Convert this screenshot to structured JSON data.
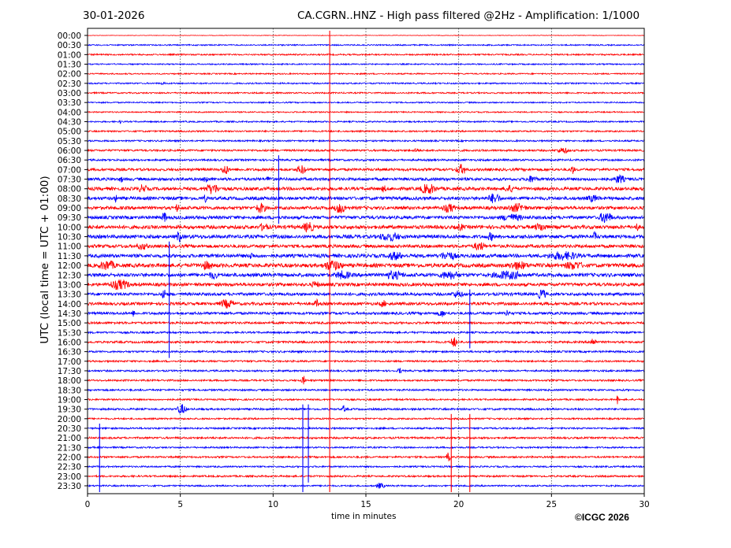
{
  "chart_data": {
    "type": "line",
    "date": "30-01-2026",
    "title": "CA.CGRN..HNZ - High pass filtered @2Hz - Amplification: 1/1000",
    "xlabel": "time in minutes",
    "ylabel": "UTC (local time = UTC + 01:00)",
    "copyright": "©ICGC 2026",
    "xlim": [
      0,
      30
    ],
    "x_ticks": [
      0,
      5,
      10,
      15,
      20,
      25,
      30
    ],
    "x_tick_labels": [
      "0",
      "5",
      "10",
      "15",
      "20",
      "25",
      "30"
    ],
    "grid": "vertical dotted at 5-minute intervals",
    "row_labels": [
      "00:00",
      "00:30",
      "01:00",
      "01:30",
      "02:00",
      "02:30",
      "03:00",
      "03:30",
      "04:00",
      "04:30",
      "05:00",
      "05:30",
      "06:00",
      "06:30",
      "07:00",
      "07:30",
      "08:00",
      "08:30",
      "09:00",
      "09:30",
      "10:00",
      "10:30",
      "11:00",
      "11:30",
      "12:00",
      "12:30",
      "13:00",
      "13:30",
      "14:00",
      "14:30",
      "15:00",
      "15:30",
      "16:00",
      "16:30",
      "17:00",
      "17:30",
      "18:00",
      "18:30",
      "19:00",
      "19:30",
      "20:00",
      "20:30",
      "21:00",
      "21:30",
      "22:00",
      "22:30",
      "23:00",
      "23:30"
    ],
    "series_colors": [
      "#ff0000",
      "#0000ff"
    ],
    "noise_level_by_row": [
      0.3,
      0.8,
      0.9,
      0.8,
      0.8,
      0.9,
      0.9,
      0.8,
      0.8,
      0.9,
      1,
      1,
      1.2,
      1.2,
      1.6,
      1.8,
      2,
      2,
      2,
      2,
      2.2,
      2.2,
      2,
      2.2,
      2.4,
      2.2,
      2,
      1.8,
      1.8,
      1.6,
      1.4,
      1.2,
      1.3,
      1.2,
      1.1,
      1.1,
      1.1,
      1.1,
      1,
      1.2,
      1,
      1.1,
      1.2,
      1,
      1.1,
      1,
      1.1,
      1
    ],
    "events": [
      [
        5,
        3.9,
        0.6,
        2
      ],
      [
        9,
        1.7,
        0.3,
        3
      ],
      [
        9,
        15,
        0.2,
        2
      ],
      [
        12,
        17.5,
        0.8,
        3
      ],
      [
        12,
        25.2,
        1.5,
        4
      ],
      [
        14,
        7.2,
        0.8,
        7
      ],
      [
        14,
        11.2,
        1.2,
        6
      ],
      [
        14,
        19.8,
        1.2,
        7
      ],
      [
        14,
        26,
        0.5,
        6
      ],
      [
        15,
        1.7,
        0.4,
        5
      ],
      [
        15,
        6.2,
        0.6,
        6
      ],
      [
        15,
        9.6,
        0.6,
        5
      ],
      [
        15,
        23.5,
        1.5,
        5
      ],
      [
        15,
        28.3,
        1.3,
        6
      ],
      [
        16,
        2.7,
        1,
        6
      ],
      [
        16,
        6.2,
        1.8,
        7
      ],
      [
        16,
        15.8,
        0.6,
        5
      ],
      [
        16,
        17.8,
        2,
        7
      ],
      [
        16,
        22.3,
        1.6,
        5
      ],
      [
        17,
        1.4,
        0.4,
        5
      ],
      [
        17,
        6.2,
        0.5,
        5
      ],
      [
        17,
        21.5,
        1.5,
        7
      ],
      [
        17,
        26.8,
        1.6,
        5
      ],
      [
        18,
        4.7,
        0.5,
        6
      ],
      [
        18,
        9,
        1.2,
        7
      ],
      [
        18,
        13.2,
        1.5,
        7
      ],
      [
        18,
        19,
        1.6,
        6
      ],
      [
        18,
        22.5,
        2.3,
        6
      ],
      [
        19,
        4,
        0.5,
        8
      ],
      [
        19,
        22,
        3,
        5
      ],
      [
        19,
        27.5,
        1.5,
        8
      ],
      [
        20,
        9.2,
        1.1,
        6
      ],
      [
        20,
        11.5,
        1.4,
        7
      ],
      [
        20,
        19.8,
        1,
        5
      ],
      [
        20,
        24,
        1.5,
        6
      ],
      [
        20,
        29.5,
        0.4,
        6
      ],
      [
        21,
        4.8,
        0.5,
        9
      ],
      [
        21,
        15.5,
        2.8,
        6
      ],
      [
        21,
        21.5,
        0.8,
        6
      ],
      [
        21,
        27.2,
        0.5,
        7
      ],
      [
        22,
        2.5,
        1.5,
        5
      ],
      [
        22,
        20.7,
        1.5,
        6
      ],
      [
        23,
        8.7,
        0.5,
        6
      ],
      [
        23,
        16,
        2,
        6
      ],
      [
        23,
        18.8,
        2.2,
        6
      ],
      [
        23,
        24.5,
        4,
        6
      ],
      [
        24,
        0.5,
        2,
        7
      ],
      [
        24,
        6,
        1.5,
        6
      ],
      [
        24,
        12.5,
        2.5,
        7
      ],
      [
        24,
        22.5,
        2.5,
        6
      ],
      [
        24,
        25.5,
        2.5,
        6
      ],
      [
        25,
        6.5,
        1,
        6
      ],
      [
        25,
        13.2,
        2,
        6
      ],
      [
        25,
        15.8,
        2.5,
        6
      ],
      [
        25,
        18.8,
        2.5,
        6
      ],
      [
        25,
        21.5,
        4,
        6
      ],
      [
        26,
        1,
        2.5,
        7
      ],
      [
        26,
        12,
        1,
        5
      ],
      [
        27,
        4,
        0.5,
        8
      ],
      [
        27,
        19.5,
        1.5,
        5
      ],
      [
        27,
        24.2,
        1,
        7
      ],
      [
        28,
        7,
        1.8,
        6
      ],
      [
        28,
        12.2,
        0.5,
        6
      ],
      [
        28,
        15.7,
        0.8,
        5
      ],
      [
        29,
        2.4,
        0.3,
        5
      ],
      [
        29,
        18.8,
        1,
        5
      ],
      [
        29,
        22.5,
        0.5,
        6
      ],
      [
        32,
        19.5,
        0.8,
        7
      ],
      [
        32,
        27,
        0.8,
        6
      ],
      [
        35,
        16.7,
        0.4,
        5
      ],
      [
        36,
        11.5,
        0.5,
        6
      ],
      [
        38,
        28.5,
        0.2,
        6
      ],
      [
        39,
        4.8,
        1,
        7
      ],
      [
        39,
        13.7,
        0.4,
        5
      ],
      [
        44,
        19.3,
        0.5,
        6
      ],
      [
        47,
        15.5,
        1,
        4
      ]
    ],
    "spikes": [
      [
        13.05,
        0,
        47,
        "#ff0000"
      ],
      [
        4.4,
        22,
        33,
        "#0000ff"
      ],
      [
        11.6,
        39,
        47,
        "#0000ff"
      ],
      [
        11.9,
        39,
        46,
        "#0000ff"
      ],
      [
        19.6,
        40,
        47,
        "#ff0000"
      ],
      [
        20.6,
        40,
        47,
        "#ff0000"
      ],
      [
        0.65,
        41,
        47,
        "#0000ff"
      ],
      [
        10.3,
        13,
        19,
        "#0000ff"
      ],
      [
        20.6,
        27,
        32,
        "#0000ff"
      ]
    ]
  }
}
